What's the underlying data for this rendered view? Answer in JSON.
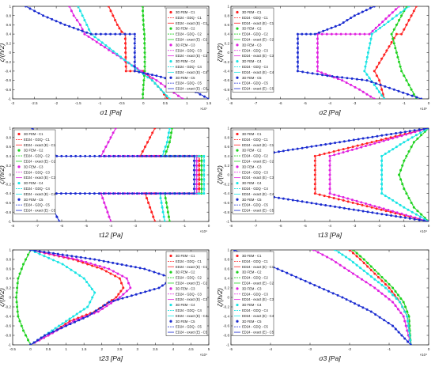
{
  "colors": {
    "C1": "#ff2020",
    "C2": "#1fd21f",
    "C3": "#e020e0",
    "C4": "#18e4e4",
    "C5": "#1a2bd0"
  },
  "chart_data": [
    {
      "type": "line",
      "xlabel": "σ1 [Pa]",
      "ylabel": "ζ/(h/2)",
      "xlim": [
        -3,
        1.5
      ],
      "ylim": [
        -1,
        1
      ],
      "xticks": [
        "-3",
        "-2.5",
        "-2",
        "-1.5",
        "-1",
        "-0.5",
        "0",
        "0.5",
        "1",
        "1.5"
      ],
      "yticks": [
        "-1",
        "-0.8",
        "-0.6",
        "-0.4",
        "-0.2",
        "0",
        "0.2",
        "0.4",
        "0.6",
        "0.8",
        "1"
      ],
      "exponent": "×10⁷",
      "legend": {
        "position": "right",
        "entries": [
          "3D FEM - C1",
          "ED24 - GDQ - C1",
          "ED24 - exact (E) - C1",
          "3D FEM - C2",
          "ED24 - GDQ - C2",
          "ED24 - exact (E) - C2",
          "3D FEM - C3",
          "ED24 - GDQ - C3",
          "ED24 - exact (E) - C3",
          "3D FEM - C4",
          "ED24 - GDQ - C4",
          "ED24 - exact (E) - C4",
          "3D FEM - C5",
          "ED24 - GDQ - C5",
          "ED24 - exact (E) - C5"
        ]
      },
      "series": [
        {
          "case": "C1",
          "x": [
            -0.8,
            -0.7,
            -0.6,
            -0.5,
            -0.42,
            -0.4,
            0.0,
            0.2,
            0.4,
            0.55
          ],
          "y": [
            1,
            0.8,
            0.6,
            0.45,
            0.4,
            -0.4,
            -0.4,
            -0.6,
            -0.8,
            -1
          ]
        },
        {
          "case": "C2",
          "x": [
            -0.02,
            0.0,
            0.02,
            0.03,
            0.03,
            0.0,
            -0.02
          ],
          "y": [
            1,
            0.6,
            0.4,
            0.0,
            -0.4,
            -0.7,
            -1
          ]
        },
        {
          "case": "C3",
          "x": [
            -1.7,
            -1.6,
            -1.45,
            -1.35,
            -0.05,
            0.3,
            0.6,
            0.9
          ],
          "y": [
            1,
            0.8,
            0.6,
            0.4,
            -0.4,
            -0.6,
            -0.8,
            -1
          ]
        },
        {
          "case": "C4",
          "x": [
            -1.5,
            -1.4,
            -1.3,
            -1.2,
            -0.1,
            0.2,
            0.4,
            0.6
          ],
          "y": [
            1,
            0.8,
            0.6,
            0.4,
            -0.4,
            -0.6,
            -0.8,
            -1
          ]
        },
        {
          "case": "C5",
          "x": [
            -2.7,
            -2.3,
            -1.8,
            -1.2,
            -0.2,
            -0.2,
            0.3,
            0.7,
            1.1,
            1.5
          ],
          "y": [
            1,
            0.8,
            0.6,
            0.4,
            0.4,
            -0.4,
            -0.5,
            -0.6,
            -0.8,
            -1
          ]
        }
      ]
    },
    {
      "type": "line",
      "xlabel": "σ2 [Pa]",
      "ylabel": "ζ/(h/2)",
      "xlim": [
        -8,
        0
      ],
      "ylim": [
        -1,
        1
      ],
      "xticks": [
        "-8",
        "-7",
        "-6",
        "-5",
        "-4",
        "-3",
        "-2",
        "-1",
        "0"
      ],
      "yticks": [
        "-1",
        "-0.8",
        "-0.6",
        "-0.4",
        "-0.2",
        "0",
        "0.2",
        "0.4",
        "0.6",
        "0.8",
        "1"
      ],
      "exponent": "×10⁶",
      "legend": {
        "position": "left",
        "entries": [
          "3D FEM - C1",
          "ED24 - GDQ - C1",
          "ED24 - exact (E) - C1",
          "3D FEM - C2",
          "ED24 - GDQ - C2",
          "ED24 - exact (E) - C2",
          "3D FEM - C3",
          "ED24 - GDQ - C3",
          "ED24 - exact (E) - C3",
          "3D FEM - C4",
          "ED24 - GDQ - C4",
          "ED24 - exact (E) - C4",
          "3D FEM - C5",
          "ED24 - GDQ - C5",
          "ED24 - exact (E) - C5"
        ]
      },
      "series": [
        {
          "case": "C1",
          "x": [
            -0.5,
            -0.7,
            -0.9,
            -1.1,
            -1.3,
            -2.2,
            -2.0,
            -1.9,
            -1.8
          ],
          "y": [
            1,
            0.8,
            0.6,
            0.4,
            0.4,
            -0.4,
            -0.6,
            -0.8,
            -1
          ]
        },
        {
          "case": "C2",
          "x": [
            -0.9,
            -1.1,
            -1.3,
            -1.5,
            -1.1,
            -0.9,
            -0.7,
            -0.5
          ],
          "y": [
            1,
            0.8,
            0.6,
            0.4,
            -0.4,
            -0.6,
            -0.8,
            -1
          ]
        },
        {
          "case": "C3",
          "x": [
            -1.2,
            -1.6,
            -2.0,
            -2.4,
            -4.5,
            -4.5,
            -3.5,
            -2.8,
            -2.2
          ],
          "y": [
            1,
            0.8,
            0.6,
            0.4,
            0.4,
            -0.4,
            -0.6,
            -0.8,
            -1
          ]
        },
        {
          "case": "C4",
          "x": [
            -0.8,
            -1.3,
            -1.8,
            -2.3,
            -2.6,
            -2.2,
            -1.8
          ],
          "y": [
            1,
            0.8,
            0.6,
            0.4,
            -0.4,
            -0.7,
            -1
          ]
        },
        {
          "case": "C5",
          "x": [
            -2.2,
            -3.0,
            -3.6,
            -4.6,
            -5.3,
            -5.3,
            -4.1,
            -2.5,
            -1.4,
            -0.3
          ],
          "y": [
            1,
            0.8,
            0.6,
            0.4,
            0.4,
            -0.4,
            -0.5,
            -0.6,
            -0.8,
            -1
          ]
        }
      ]
    },
    {
      "type": "line",
      "xlabel": "τ12 [Pa]",
      "ylabel": "ζ/(h/2)",
      "xlim": [
        -8,
        0
      ],
      "ylim": [
        -1,
        1
      ],
      "xticks": [
        "-8",
        "-7",
        "-6",
        "-5",
        "-4",
        "-3",
        "-2",
        "-1",
        "0"
      ],
      "yticks": [
        "-1",
        "-0.8",
        "-0.6",
        "-0.4",
        "-0.2",
        "0",
        "0.2",
        "0.4",
        "0.6",
        "0.8",
        "1"
      ],
      "exponent": "×10⁴",
      "legend": {
        "position": "left",
        "entries": [
          "3D FEM - C1",
          "ED24 - GDQ - C1",
          "ED24 - exact (E) - C1",
          "3D FEM - C2",
          "ED24 - GDQ - C2",
          "ED24 - exact (E) - C2",
          "3D FEM - C3",
          "ED24 - GDQ - C3",
          "ED24 - exact (E) - C3",
          "3D FEM - C4",
          "ED24 - GDQ - C4",
          "ED24 - exact (E) - C4",
          "3D FEM - C5",
          "ED24 - GDQ - C5",
          "ED24 - exact (E) - C5"
        ]
      },
      "series": [
        {
          "case": "C1",
          "x": [
            -2.2,
            -2.4,
            -2.6,
            -2.8,
            -0.4,
            -0.4,
            -2.6,
            -2.4,
            -2.2
          ],
          "y": [
            1,
            0.8,
            0.6,
            0.4,
            0.4,
            -0.4,
            -0.4,
            -0.7,
            -1
          ]
        },
        {
          "case": "C2",
          "x": [
            -1.5,
            -1.6,
            -1.8,
            -0.3,
            -0.3,
            -1.8,
            -1.7,
            -1.6
          ],
          "y": [
            1,
            0.7,
            0.4,
            0.4,
            -0.4,
            -0.4,
            -0.7,
            -1
          ]
        },
        {
          "case": "C3",
          "x": [
            -3.8,
            -4.0,
            -4.2,
            -4.4,
            -0.5,
            -0.5,
            -4.4,
            -4.2,
            -4.0
          ],
          "y": [
            1,
            0.8,
            0.6,
            0.4,
            0.4,
            -0.4,
            -0.4,
            -0.7,
            -1
          ]
        },
        {
          "case": "C4",
          "x": [
            -1.6,
            -1.7,
            -1.9,
            -0.2,
            -0.2,
            -2.0,
            -1.9,
            -1.8
          ],
          "y": [
            1,
            0.7,
            0.4,
            0.4,
            -0.4,
            -0.4,
            -0.7,
            -1
          ]
        },
        {
          "case": "C5",
          "x": [
            -7.2,
            -6.9,
            -6.6,
            -6.2,
            -0.6,
            -0.6,
            -6.6,
            -6.4,
            -6.1
          ],
          "y": [
            1,
            0.8,
            0.6,
            0.4,
            0.4,
            -0.4,
            -0.4,
            -0.7,
            -1
          ]
        }
      ]
    },
    {
      "type": "line",
      "xlabel": "τ13 [Pa]",
      "ylabel": "ζ/(h/2)",
      "xlim": [
        -8,
        0
      ],
      "ylim": [
        -1,
        1
      ],
      "xticks": [
        "-8",
        "-7",
        "-6",
        "-5",
        "-4",
        "-3",
        "-2",
        "-1",
        "0"
      ],
      "yticks": [
        "-1",
        "-0.8",
        "-0.6",
        "-0.4",
        "-0.2",
        "0",
        "0.2",
        "0.4",
        "0.6",
        "0.8",
        "1"
      ],
      "exponent": "×10⁴",
      "legend": {
        "position": "left",
        "entries": [
          "3D FEM - C1",
          "ED24 - GDQ - C1",
          "ED24 - exact (E) - C1",
          "3D FEM - C2",
          "ED24 - GDQ - C2",
          "ED24 - exact (E) - C2",
          "3D FEM - C3",
          "ED24 - GDQ - C3",
          "ED24 - exact (E) - C3",
          "3D FEM - C4",
          "ED24 - GDQ - C4",
          "ED24 - exact (E) - C4",
          "3D FEM - C5",
          "ED24 - GDQ - C5",
          "ED24 - exact (E) - C5"
        ]
      },
      "series": [
        {
          "case": "C1",
          "x": [
            0,
            -2.3,
            -4.6,
            -4.6,
            -2.3,
            0
          ],
          "y": [
            1,
            0.7,
            0.4,
            -0.4,
            -0.7,
            -1
          ]
        },
        {
          "case": "C2",
          "x": [
            0,
            -0.6,
            -1.0,
            -1.2,
            -1.0,
            -0.6,
            0
          ],
          "y": [
            1,
            0.7,
            0.3,
            0.0,
            -0.3,
            -0.7,
            -1
          ]
        },
        {
          "case": "C3",
          "x": [
            0,
            -2.0,
            -4.0,
            -4.0,
            -2.0,
            0
          ],
          "y": [
            1,
            0.7,
            0.4,
            -0.4,
            -0.7,
            -1
          ]
        },
        {
          "case": "C4",
          "x": [
            0,
            -1.0,
            -1.9,
            -1.9,
            -1.0,
            0
          ],
          "y": [
            1,
            0.7,
            0.4,
            -0.4,
            -0.7,
            -1
          ]
        },
        {
          "case": "C5",
          "x": [
            0,
            -3.6,
            -7.2,
            -7.2,
            -3.6,
            0
          ],
          "y": [
            1,
            0.7,
            0.4,
            -0.4,
            -0.7,
            -1
          ]
        }
      ]
    },
    {
      "type": "line",
      "xlabel": "τ23 [Pa]",
      "ylabel": "ζ/(h/2)",
      "xlim": [
        -0.5,
        5
      ],
      "ylim": [
        -1,
        1
      ],
      "xticks": [
        "-0.5",
        "0",
        "0.5",
        "1",
        "1.5",
        "2",
        "2.5",
        "3",
        "3.5",
        "4",
        "4.5",
        "5"
      ],
      "yticks": [
        "-1",
        "-0.8",
        "-0.6",
        "-0.4",
        "-0.2",
        "0",
        "0.2",
        "0.4",
        "0.6",
        "0.8",
        "1"
      ],
      "exponent": "×10⁴",
      "legend": {
        "position": "right",
        "entries": [
          "3D FEM - C1",
          "ED24 - GDQ - C1",
          "ED24 - exact (E) - C1",
          "3D FEM - C2",
          "ED24 - GDQ - C2",
          "ED24 - exact (E) - C2",
          "3D FEM - C3",
          "ED24 - GDQ - C3",
          "ED24 - exact (E) - C3",
          "3D FEM - C4",
          "ED24 - GDQ - C4",
          "ED24 - exact (E) - C4",
          "3D FEM - C5",
          "ED24 - GDQ - C5",
          "ED24 - exact (E) - C5"
        ]
      },
      "series": [
        {
          "case": "C1",
          "x": [
            0,
            1.2,
            2.0,
            2.5,
            2.6,
            2.4,
            1.8,
            1.1,
            0.5,
            0
          ],
          "y": [
            1,
            0.8,
            0.6,
            0.4,
            0.2,
            0.0,
            -0.3,
            -0.5,
            -0.8,
            -1
          ]
        },
        {
          "case": "C2",
          "x": [
            0,
            -0.2,
            -0.35,
            -0.4,
            -0.35,
            -0.2,
            0
          ],
          "y": [
            1,
            0.7,
            0.4,
            0.0,
            -0.4,
            -0.7,
            -1
          ]
        },
        {
          "case": "C3",
          "x": [
            0,
            1.3,
            2.2,
            2.7,
            2.8,
            2.5,
            1.9,
            1.2,
            0.5,
            0
          ],
          "y": [
            1,
            0.8,
            0.6,
            0.4,
            0.2,
            0.0,
            -0.3,
            -0.5,
            -0.8,
            -1
          ]
        },
        {
          "case": "C4",
          "x": [
            0,
            0.9,
            1.5,
            1.8,
            1.6,
            1.2,
            0.8,
            0.4,
            0
          ],
          "y": [
            1,
            0.7,
            0.4,
            0.1,
            -0.2,
            -0.4,
            -0.6,
            -0.8,
            -1
          ]
        },
        {
          "case": "C5",
          "x": [
            0,
            1.8,
            3.2,
            4.0,
            3.6,
            2.2,
            1.6,
            1.0,
            0.4,
            0
          ],
          "y": [
            1,
            0.8,
            0.6,
            0.4,
            0.2,
            -0.1,
            -0.4,
            -0.6,
            -0.8,
            -1
          ]
        }
      ]
    },
    {
      "type": "line",
      "xlabel": "σ3 [Pa]",
      "ylabel": "ζ/(h/2)",
      "xlim": [
        -5,
        0.5
      ],
      "ylim": [
        -1,
        1
      ],
      "xticks": [
        "-5",
        "-4",
        "-3",
        "-2",
        "-1",
        "0"
      ],
      "yticks": [
        "-1",
        "-0.8",
        "-0.6",
        "-0.4",
        "-0.2",
        "0",
        "0.2",
        "0.4",
        "0.6",
        "0.8",
        "1"
      ],
      "exponent": "×10⁴",
      "legend": {
        "position": "left",
        "entries": [
          "3D FEM - C1",
          "ED24 - GDQ - C1",
          "ED24 - exact (E) - C1",
          "3D FEM - C2",
          "ED24 - GDQ - C2",
          "ED24 - exact (E) - C2",
          "3D FEM - C3",
          "ED24 - GDQ - C3",
          "ED24 - exact (E) - C3",
          "3D FEM - C4",
          "ED24 - GDQ - C4",
          "ED24 - exact (E) - C4",
          "3D FEM - C5",
          "ED24 - GDQ - C5",
          "ED24 - exact (E) - C5"
        ]
      },
      "series": [
        {
          "case": "C1",
          "x": [
            -1.7,
            -1.4,
            -1.0,
            -0.6,
            -0.3,
            -0.1,
            0
          ],
          "y": [
            1,
            0.8,
            0.5,
            0.2,
            -0.1,
            -0.4,
            -1
          ]
        },
        {
          "case": "C2",
          "x": [
            -1.6,
            -1.3,
            -0.9,
            -0.5,
            -0.2,
            -0.05,
            0
          ],
          "y": [
            1,
            0.8,
            0.5,
            0.2,
            -0.1,
            -0.4,
            -1
          ]
        },
        {
          "case": "C3",
          "x": [
            -2.7,
            -2.2,
            -1.6,
            -1.0,
            -0.5,
            -0.2,
            0
          ],
          "y": [
            1,
            0.8,
            0.5,
            0.2,
            -0.1,
            -0.4,
            -1
          ]
        },
        {
          "case": "C4",
          "x": [
            -2.1,
            -1.7,
            -1.2,
            -0.7,
            -0.3,
            -0.1,
            0
          ],
          "y": [
            1,
            0.8,
            0.5,
            0.2,
            -0.1,
            -0.4,
            -1
          ]
        },
        {
          "case": "C5",
          "x": [
            -4.9,
            -4.4,
            -3.7,
            -2.8,
            -1.9,
            -1.1,
            -0.5,
            0
          ],
          "y": [
            1,
            0.8,
            0.6,
            0.3,
            0.0,
            -0.3,
            -0.6,
            -1
          ]
        }
      ]
    }
  ]
}
